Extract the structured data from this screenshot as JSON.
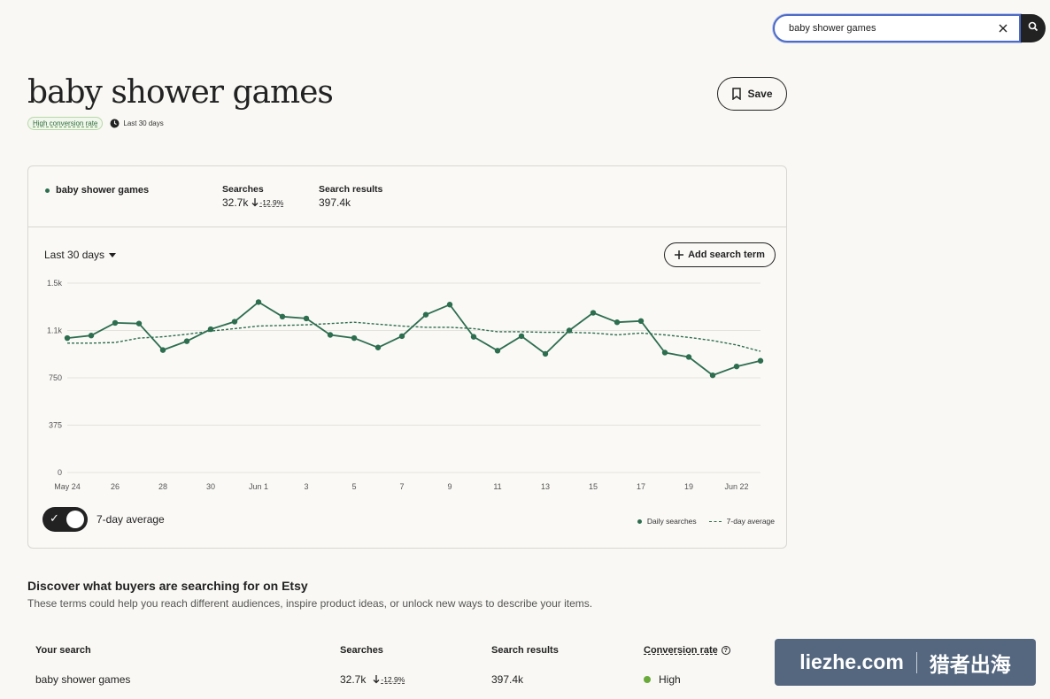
{
  "search": {
    "value": "baby shower games",
    "clear_icon": "close-icon",
    "search_icon": "search-icon"
  },
  "header": {
    "title": "baby shower games",
    "badge": "High conversion rate",
    "period": "Last 30 days",
    "save_label": "Save"
  },
  "stats": {
    "term": "baby shower games",
    "searches_label": "Searches",
    "searches_value": "32.7k",
    "searches_change": "-12.9%",
    "results_label": "Search results",
    "results_value": "397.4k"
  },
  "controls": {
    "range": "Last 30 days",
    "add_term": "Add search term",
    "toggle_label": "7-day average",
    "toggle_on": true
  },
  "legend": {
    "daily": "Daily searches",
    "avg": "7-day average"
  },
  "chart_data": {
    "type": "line",
    "x": [
      "May 24",
      "May 25",
      "May 26",
      "May 27",
      "May 28",
      "May 29",
      "May 30",
      "May 31",
      "Jun 1",
      "Jun 2",
      "Jun 3",
      "Jun 4",
      "Jun 5",
      "Jun 6",
      "Jun 7",
      "Jun 8",
      "Jun 9",
      "Jun 10",
      "Jun 11",
      "Jun 12",
      "Jun 13",
      "Jun 14",
      "Jun 15",
      "Jun 16",
      "Jun 17",
      "Jun 18",
      "Jun 19",
      "Jun 20",
      "Jun 21",
      "Jun 22"
    ],
    "tick_labels": [
      "May 24",
      "26",
      "28",
      "30",
      "Jun 1",
      "3",
      "5",
      "7",
      "9",
      "11",
      "13",
      "15",
      "17",
      "19",
      "Jun 22"
    ],
    "y_ticks": [
      "0",
      "375",
      "750",
      "1.1k",
      "1.5k"
    ],
    "ylim": [
      0,
      1500
    ],
    "series": [
      {
        "name": "Daily searches",
        "style": "line-with-points",
        "values": [
          1065,
          1085,
          1185,
          1180,
          970,
          1040,
          1135,
          1195,
          1350,
          1235,
          1220,
          1090,
          1065,
          990,
          1080,
          1250,
          1330,
          1075,
          965,
          1080,
          940,
          1125,
          1265,
          1190,
          1200,
          950,
          915,
          770,
          840,
          885
        ]
      },
      {
        "name": "7-day average",
        "style": "dashed",
        "values": [
          1025,
          1025,
          1030,
          1065,
          1075,
          1095,
          1120,
          1140,
          1160,
          1165,
          1170,
          1180,
          1190,
          1175,
          1160,
          1150,
          1150,
          1140,
          1115,
          1115,
          1110,
          1110,
          1105,
          1090,
          1105,
          1090,
          1070,
          1045,
          1010,
          960
        ]
      }
    ],
    "grid": true,
    "colors": {
      "line": "#2d6e4f"
    }
  },
  "discover": {
    "title": "Discover what buyers are searching for on Etsy",
    "subtitle": "These terms could help you reach different audiences, inspire product ideas, or unlock new ways to describe your items."
  },
  "table": {
    "headers": [
      "Your search",
      "Searches",
      "Search results",
      "Conversion rate"
    ],
    "row": {
      "term": "baby shower games",
      "searches": "32.7k",
      "change": "-12.9%",
      "results": "397.4k",
      "conversion": "High"
    }
  },
  "watermark": {
    "left": "liezhe.com",
    "right": "猎者出海"
  }
}
